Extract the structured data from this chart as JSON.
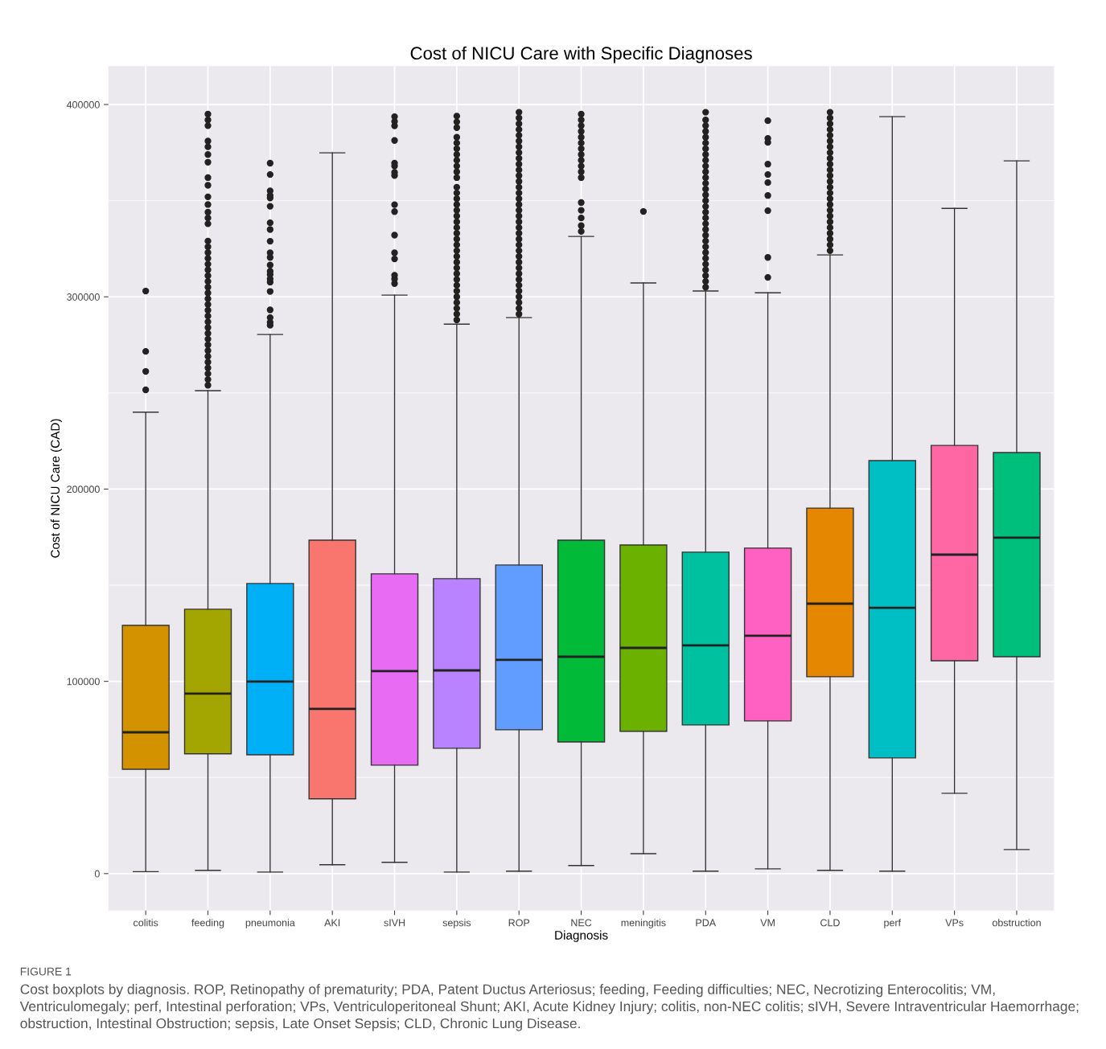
{
  "chart_data": {
    "type": "box",
    "title": "Cost of NICU Care with Specific Diagnoses",
    "xlabel": "Diagnosis",
    "ylabel": "Cost of NICU Care (CAD)",
    "categories": [
      "colitis",
      "feeding",
      "pneumonia",
      "AKI",
      "sIVH",
      "sepsis",
      "ROP",
      "NEC",
      "meningitis",
      "PDA",
      "VM",
      "CLD",
      "perf",
      "VPs",
      "obstruction"
    ],
    "colors": [
      "#d39200",
      "#a3a500",
      "#00b0f6",
      "#f8766d",
      "#e76bf3",
      "#b983ff",
      "#619cff",
      "#00ba38",
      "#6bb100",
      "#00c19f",
      "#ff61c3",
      "#e58700",
      "#00bfc4",
      "#ff67a4",
      "#00bf7d"
    ],
    "boxes": [
      {
        "low": 1000,
        "q1": 54300,
        "median": 73500,
        "q3": 129100,
        "high": 240000,
        "outliers": [
          251600,
          261200,
          271600,
          303000
        ]
      },
      {
        "low": 1700,
        "q1": 62300,
        "median": 93600,
        "q3": 137500,
        "high": 251200,
        "outliers": [
          254000,
          257000,
          260000,
          263000,
          266000,
          269000,
          272000,
          275000,
          278000,
          281000,
          284000,
          287000,
          290000,
          293000,
          296000,
          299000,
          302000,
          305000,
          308000,
          311000,
          314000,
          317000,
          320000,
          323000,
          326000,
          329000,
          338000,
          341000,
          344000,
          348000,
          352000,
          358000,
          362000,
          370000,
          374000,
          378000,
          381000,
          389000,
          392000,
          395000
        ]
      },
      {
        "low": 800,
        "q1": 61800,
        "median": 99900,
        "q3": 150900,
        "high": 280400,
        "outliers": [
          285200,
          286700,
          289200,
          293200,
          302800,
          307600,
          309300,
          311600,
          313300,
          316500,
          320500,
          322900,
          328900,
          335000,
          338500,
          347100,
          351400,
          352700,
          355100,
          363600,
          369500
        ]
      },
      {
        "low": 4600,
        "q1": 38900,
        "median": 85700,
        "q3": 173400,
        "high": 374900
      },
      {
        "low": 5900,
        "q1": 56400,
        "median": 105300,
        "q3": 155900,
        "high": 300900,
        "outliers": [
          306900,
          309300,
          311200,
          319700,
          322900,
          332100,
          344300,
          347900,
          363100,
          364700,
          368000,
          369500,
          381300,
          388900,
          391200,
          393700
        ]
      },
      {
        "low": 800,
        "q1": 65200,
        "median": 105700,
        "q3": 153400,
        "high": 285800,
        "outliers": [
          288000,
          291000,
          294000,
          297000,
          300000,
          303000,
          306000,
          309000,
          312000,
          315000,
          318000,
          321000,
          324000,
          327000,
          330000,
          333000,
          336000,
          339000,
          342000,
          345000,
          348000,
          351000,
          354000,
          357000,
          362000,
          365000,
          368000,
          371000,
          374000,
          377000,
          380000,
          383000,
          388000,
          391000,
          394000
        ]
      },
      {
        "low": 1300,
        "q1": 74800,
        "median": 111200,
        "q3": 160500,
        "high": 289200,
        "outliers": [
          291000,
          294000,
          297000,
          300000,
          303000,
          306000,
          309000,
          312000,
          315000,
          318000,
          321000,
          324000,
          327000,
          330000,
          333000,
          336000,
          339000,
          342000,
          345000,
          348000,
          351000,
          354000,
          357000,
          360000,
          363000,
          366000,
          369000,
          372000,
          375000,
          378000,
          381000,
          384000,
          387000,
          390000,
          393000,
          396000
        ]
      },
      {
        "low": 4200,
        "q1": 68500,
        "median": 112800,
        "q3": 173400,
        "high": 331400,
        "outliers": [
          334000,
          337000,
          341000,
          345000,
          349000,
          362000,
          365000,
          368000,
          371000,
          374000,
          377000,
          380000,
          383000,
          386000,
          389000,
          392000,
          395000
        ]
      },
      {
        "low": 10400,
        "q1": 74000,
        "median": 117400,
        "q3": 170900,
        "high": 307200,
        "outliers": [
          344400
        ]
      },
      {
        "low": 1300,
        "q1": 77300,
        "median": 118700,
        "q3": 167200,
        "high": 303000,
        "outliers": [
          305000,
          308000,
          311000,
          314000,
          317000,
          320000,
          323000,
          326000,
          329000,
          332000,
          335000,
          338000,
          341000,
          344000,
          347000,
          350000,
          353000,
          356000,
          359000,
          362000,
          365000,
          368000,
          371000,
          374000,
          377000,
          380000,
          383000,
          386000,
          389000,
          392000,
          396000
        ]
      },
      {
        "low": 2500,
        "q1": 79400,
        "median": 123700,
        "q3": 169300,
        "high": 302100,
        "outliers": [
          310100,
          320500,
          344800,
          352700,
          359400,
          363600,
          369000,
          380300,
          382400,
          391600
        ]
      },
      {
        "low": 1700,
        "q1": 102400,
        "median": 140400,
        "q3": 190100,
        "high": 321800,
        "outliers": [
          324000,
          327000,
          330000,
          333000,
          336000,
          339000,
          342000,
          345000,
          348000,
          351000,
          354000,
          357000,
          360000,
          363000,
          366000,
          369000,
          372000,
          375000,
          378000,
          381000,
          384000,
          387000,
          390000,
          393000,
          396000
        ]
      },
      {
        "low": 1300,
        "q1": 60200,
        "median": 138300,
        "q3": 214800,
        "high": 393700
      },
      {
        "low": 41800,
        "q1": 110700,
        "median": 165900,
        "q3": 222700,
        "high": 346000
      },
      {
        "low": 12500,
        "q1": 112800,
        "median": 174700,
        "q3": 219000,
        "high": 370700
      }
    ],
    "ylim": [
      -19200,
      420000
    ],
    "yticks": [
      0,
      {
        "value": 50000,
        "label": null
      },
      100000,
      {
        "value": 150000,
        "label": null
      },
      200000,
      {
        "value": 250000,
        "label": null
      },
      300000,
      {
        "value": 350000,
        "label": null
      },
      400000
    ],
    "grid": true,
    "marker": "circle",
    "annotations": [
      "FIGURE 1",
      "Cost boxplots by diagnosis. ROP, Retinopathy of prematurity; PDA, Patent Ductus Arteriosus; feeding, Feeding difficulties; NEC, Necrotizing Enterocolitis; VM, Ventriculomegaly; perf, Intestinal perforation; VPs, Ventriculoperitoneal Shunt; AKI, Acute Kidney Injury; colitis, non-NEC colitis; sIVH, Severe Intraventricular Haemorrhage; obstruction, Intestinal Obstruction; sepsis, Late Onset Sepsis; CLD, Chronic Lung Disease."
    ]
  }
}
